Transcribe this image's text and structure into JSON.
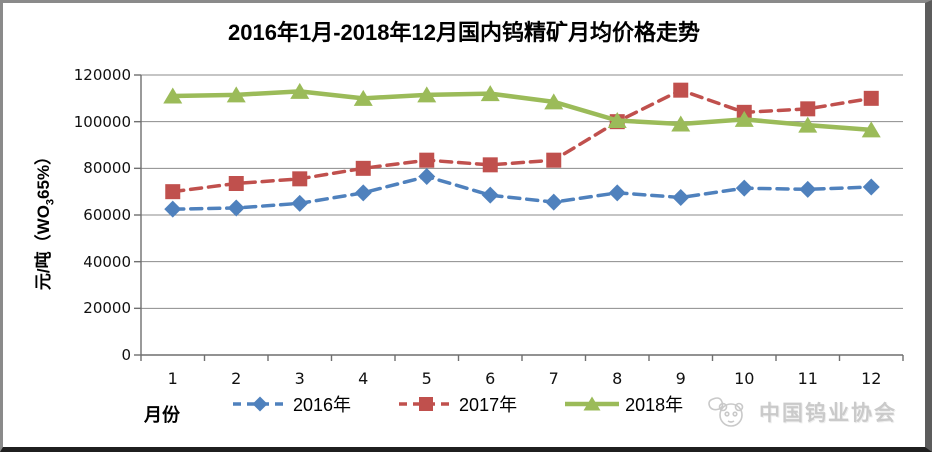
{
  "frame": {
    "background": "#ffffff",
    "border_color": "#8a8a8a"
  },
  "watermark": {
    "logo": "panda-logo",
    "text": "中国钨业协会"
  },
  "chart_data": {
    "type": "line",
    "title": "2016年1月-2018年12月国内钨精矿月均价格走势",
    "xlabel": "月份",
    "ylabel": "元/吨（WO3 65%）",
    "ylabel_parts": {
      "pre": "元/吨（WO",
      "sub": "3",
      "post": "65%）"
    },
    "categories": [
      "1",
      "2",
      "3",
      "4",
      "5",
      "6",
      "7",
      "8",
      "9",
      "10",
      "11",
      "12"
    ],
    "yticks": [
      0,
      20000,
      40000,
      60000,
      80000,
      100000,
      120000
    ],
    "ylim": [
      0,
      120000
    ],
    "grid": true,
    "legend_position": "bottom",
    "axis_color": "#6f6f6f",
    "grid_color": "#8b8b8b",
    "series": [
      {
        "name": "2016年",
        "color": "#4F81BD",
        "line_style": "dashed",
        "marker": "diamond",
        "values": [
          62500,
          63000,
          65000,
          69500,
          76500,
          68500,
          65500,
          69500,
          67500,
          71500,
          71000,
          72000
        ]
      },
      {
        "name": "2017年",
        "color": "#C0504D",
        "line_style": "dashed",
        "marker": "square",
        "values": [
          70000,
          73500,
          75500,
          80000,
          83500,
          81500,
          83500,
          100000,
          113500,
          104000,
          105500,
          110000
        ]
      },
      {
        "name": "2018年",
        "color": "#9BBB59",
        "line_style": "solid",
        "marker": "triangle",
        "values": [
          111000,
          111500,
          113000,
          110000,
          111500,
          112000,
          108500,
          100500,
          99000,
          101000,
          98500,
          96500
        ]
      }
    ]
  }
}
